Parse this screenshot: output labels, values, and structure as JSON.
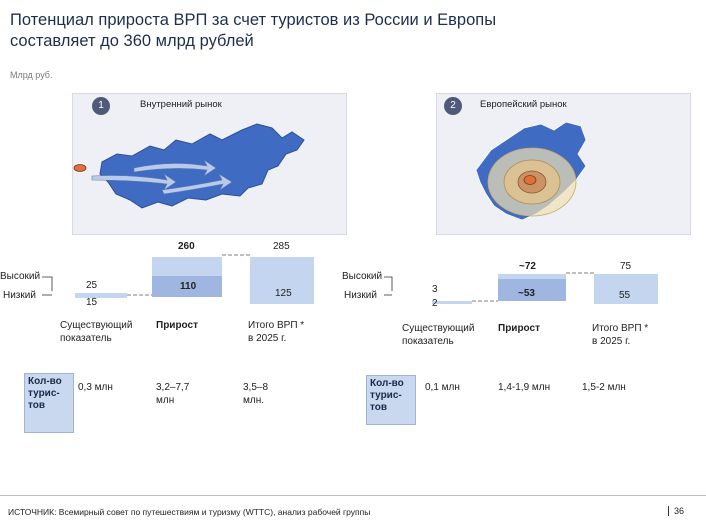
{
  "title_line1": "Потенциал прироста ВРП за счет туристов из России и Европы",
  "title_line2": "составляет до 360 млрд рублей",
  "unit": "Млрд руб.",
  "colors": {
    "bar_light": "#c3d5ef",
    "bar_mid": "#9fb7e0",
    "panel": "#eef0f6",
    "badge": "#505a78",
    "russia_map": "#3f6cc2"
  },
  "left": {
    "badge": "1",
    "panel_title": "Внутренний рынок",
    "level_high": "Высокий",
    "level_low": "Низкий",
    "labels": {
      "existing": "25",
      "existing_low": "15",
      "growth_high": "260",
      "growth_low": "110",
      "total_high": "285",
      "total_low": "125"
    },
    "categories": [
      "Существующий показатель",
      "Прирост",
      "Итого ВРП * в 2025 г."
    ],
    "cat_existing": "Существующий\nпоказатель",
    "cat_growth": "Прирост",
    "cat_total": "Итого ВРП *\nв 2025 г.",
    "tourists_label": "Кол-во\nтурис-\nтов",
    "tourists": [
      "0,3 млн",
      "3,2–7,7\nмлн",
      "3,5–8\nмлн."
    ]
  },
  "right": {
    "badge": "2",
    "panel_title": "Европейский рынок",
    "level_high": "Высокий",
    "level_low": "Низкий",
    "labels": {
      "existing": "3",
      "existing_low": "2",
      "growth_high": "~72",
      "growth_low": "~53",
      "total_high": "75",
      "total_low": "55"
    },
    "categories": [
      "Существующий показатель",
      "Прирост",
      "Итого ВРП * в 2025 г."
    ],
    "cat_existing": "Существующий\nпоказатель",
    "cat_growth": "Прирост",
    "cat_total": "Итого ВРП *\nв 2025 г.",
    "tourists_label": "Кол-во\nтурис-\nтов",
    "tourists": [
      "0,1 млн",
      "1,4-1,9 млн",
      "1,5-2 млн"
    ]
  },
  "chart_data": [
    {
      "type": "bar",
      "title": "Внутренний рынок",
      "categories": [
        "Существующий показатель",
        "Прирост",
        "Итого ВРП * в 2025 г."
      ],
      "series": [
        {
          "name": "Высокий",
          "values": [
            25,
            260,
            285
          ]
        },
        {
          "name": "Низкий",
          "values": [
            15,
            110,
            125
          ]
        }
      ]
    },
    {
      "type": "bar",
      "title": "Европейский рынок",
      "categories": [
        "Существующий показатель",
        "Прирост",
        "Итого ВРП * в 2025 г."
      ],
      "series": [
        {
          "name": "Высокий",
          "values": [
            3,
            72,
            75
          ]
        },
        {
          "name": "Низкий",
          "values": [
            2,
            53,
            55
          ]
        }
      ]
    }
  ],
  "source": "ИСТОЧНИК: Всемирный совет по путешествиям и туризму (WTTC), анализ рабочей группы",
  "page_number": "36"
}
